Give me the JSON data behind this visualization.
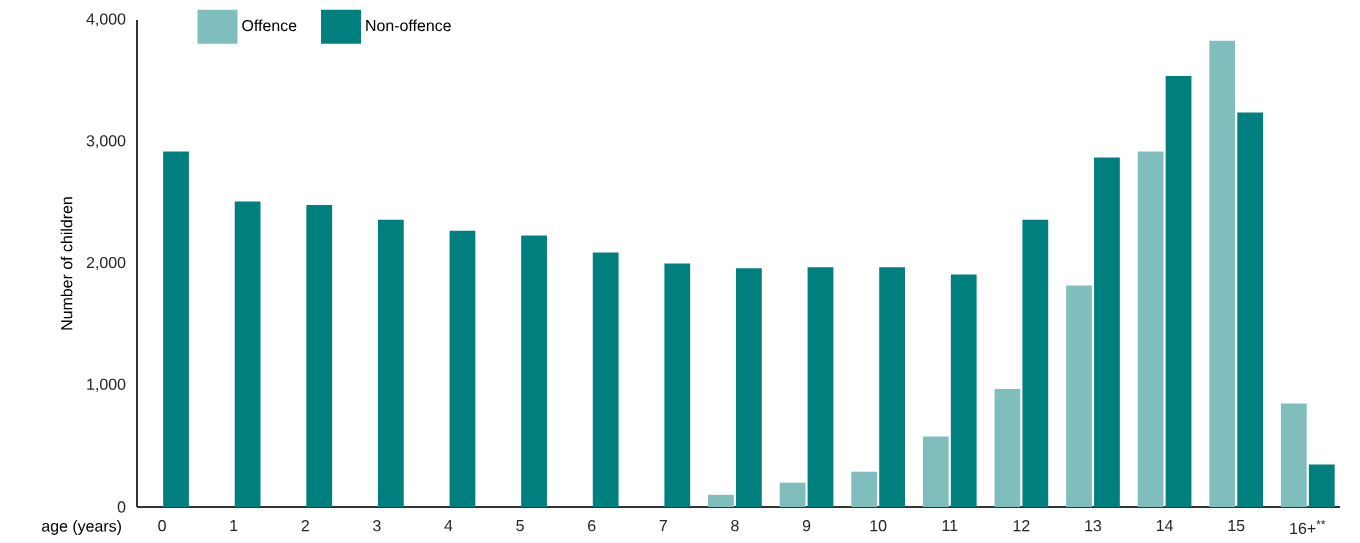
{
  "chart_data": {
    "type": "bar",
    "xlabel": "age (years)",
    "ylabel": "Number of children",
    "categories": [
      "0",
      "1",
      "2",
      "3",
      "4",
      "5",
      "6",
      "7",
      "8",
      "9",
      "10",
      "11",
      "12",
      "13",
      "14",
      "15",
      "16+$^{**}$"
    ],
    "series": [
      {
        "name": "Offence",
        "color": "#80bebe",
        "values": [
          null,
          null,
          null,
          null,
          null,
          null,
          null,
          null,
          100,
          200,
          290,
          580,
          970,
          1820,
          2920,
          3830,
          850
        ]
      },
      {
        "name": "Non-offence",
        "color": "#007f7f",
        "values": [
          2920,
          2510,
          2480,
          2360,
          2270,
          2230,
          2090,
          2000,
          1960,
          1970,
          1970,
          1910,
          2360,
          2870,
          3540,
          3240,
          350
        ]
      }
    ],
    "ylim": [
      0,
      4000
    ],
    "yticks": [
      0,
      {
        "value": 1000,
        "label": "1,000"
      },
      {
        "value": 2000,
        "label": "2,000"
      },
      {
        "value": 3000,
        "label": "3,000"
      },
      {
        "value": 4000,
        "label": "4,000"
      }
    ],
    "legend": "top left"
  }
}
